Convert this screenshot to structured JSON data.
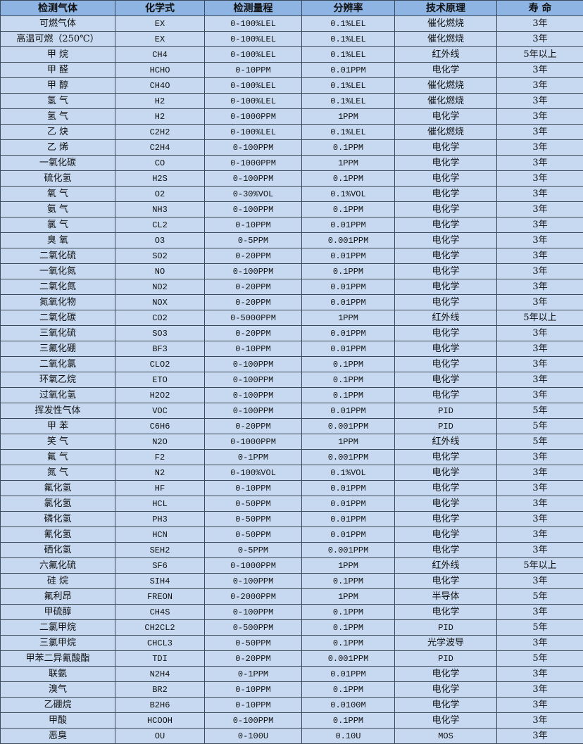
{
  "headers": [
    "检测气体",
    "化学式",
    "检测量程",
    "分辨率",
    "技术原理",
    "寿 命"
  ],
  "rows": [
    [
      "可燃气体",
      "EX",
      "0-100%LEL",
      "0.1%LEL",
      "催化燃烧",
      "3年"
    ],
    [
      "高温可燃（250℃）",
      "EX",
      "0-100%LEL",
      "0.1%LEL",
      "催化燃烧",
      "3年"
    ],
    [
      "甲 烷",
      "CH4",
      "0-100%LEL",
      "0.1%LEL",
      "红外线",
      "5年以上"
    ],
    [
      "甲 醛",
      "HCHO",
      "0-10PPM",
      "0.01PPM",
      "电化学",
      "3年"
    ],
    [
      "甲 醇",
      "CH4O",
      "0-100%LEL",
      "0.1%LEL",
      "催化燃烧",
      "3年"
    ],
    [
      "氢 气",
      "H2",
      "0-100%LEL",
      "0.1%LEL",
      "催化燃烧",
      "3年"
    ],
    [
      "氢 气",
      "H2",
      "0-1000PPM",
      "1PPM",
      "电化学",
      "3年"
    ],
    [
      "乙 炔",
      "C2H2",
      "0-100%LEL",
      "0.1%LEL",
      "催化燃烧",
      "3年"
    ],
    [
      "乙 烯",
      "C2H4",
      "0-100PPM",
      "0.1PPM",
      "电化学",
      "3年"
    ],
    [
      "一氧化碳",
      "CO",
      "0-1000PPM",
      "1PPM",
      "电化学",
      "3年"
    ],
    [
      "硫化氢",
      "H2S",
      "0-100PPM",
      "0.1PPM",
      "电化学",
      "3年"
    ],
    [
      "氧 气",
      "O2",
      "0-30%VOL",
      "0.1%VOL",
      "电化学",
      "3年"
    ],
    [
      "氨 气",
      "NH3",
      "0-100PPM",
      "0.1PPM",
      "电化学",
      "3年"
    ],
    [
      "氯 气",
      "CL2",
      "0-10PPM",
      "0.01PPM",
      "电化学",
      "3年"
    ],
    [
      "臭 氧",
      "O3",
      "0-5PPM",
      "0.001PPM",
      "电化学",
      "3年"
    ],
    [
      "二氧化硫",
      "SO2",
      "0-20PPM",
      "0.01PPM",
      "电化学",
      "3年"
    ],
    [
      "一氧化氮",
      "NO",
      "0-100PPM",
      "0.1PPM",
      "电化学",
      "3年"
    ],
    [
      "二氧化氮",
      "NO2",
      "0-20PPM",
      "0.01PPM",
      "电化学",
      "3年"
    ],
    [
      "氮氧化物",
      "NOX",
      "0-20PPM",
      "0.01PPM",
      "电化学",
      "3年"
    ],
    [
      "二氧化碳",
      "CO2",
      "0-5000PPM",
      "1PPM",
      "红外线",
      "5年以上"
    ],
    [
      "三氧化硫",
      "SO3",
      "0-20PPM",
      "0.01PPM",
      "电化学",
      "3年"
    ],
    [
      "三氟化硼",
      "BF3",
      "0-10PPM",
      "0.01PPM",
      "电化学",
      "3年"
    ],
    [
      "二氧化氯",
      "CLO2",
      "0-100PPM",
      "0.1PPM",
      "电化学",
      "3年"
    ],
    [
      "环氧乙烷",
      "ETO",
      "0-100PPM",
      "0.1PPM",
      "电化学",
      "3年"
    ],
    [
      "过氧化氢",
      "H2O2",
      "0-100PPM",
      "0.1PPM",
      "电化学",
      "3年"
    ],
    [
      "挥发性气体",
      "VOC",
      "0-100PPM",
      "0.01PPM",
      "PID",
      "5年"
    ],
    [
      "甲 苯",
      "C6H6",
      "0-20PPM",
      "0.001PPM",
      "PID",
      "5年"
    ],
    [
      "笑 气",
      "N2O",
      "0-1000PPM",
      "1PPM",
      "红外线",
      "5年"
    ],
    [
      "氟 气",
      "F2",
      "0-1PPM",
      "0.001PPM",
      "电化学",
      "3年"
    ],
    [
      "氮 气",
      "N2",
      "0-100%VOL",
      "0.1%VOL",
      "电化学",
      "3年"
    ],
    [
      "氟化氢",
      "HF",
      "0-10PPM",
      "0.01PPM",
      "电化学",
      "3年"
    ],
    [
      "氯化氢",
      "HCL",
      "0-50PPM",
      "0.01PPM",
      "电化学",
      "3年"
    ],
    [
      "磷化氢",
      "PH3",
      "0-50PPM",
      "0.01PPM",
      "电化学",
      "3年"
    ],
    [
      "氰化氢",
      "HCN",
      "0-50PPM",
      "0.01PPM",
      "电化学",
      "3年"
    ],
    [
      "硒化氢",
      "SEH2",
      "0-5PPM",
      "0.001PPM",
      "电化学",
      "3年"
    ],
    [
      "六氟化硫",
      "SF6",
      "0-1000PPM",
      "1PPM",
      "红外线",
      "5年以上"
    ],
    [
      "硅 烷",
      "SIH4",
      "0-100PPM",
      "0.1PPM",
      "电化学",
      "3年"
    ],
    [
      "氟利昂",
      "FREON",
      "0-2000PPM",
      "1PPM",
      "半导体",
      "5年"
    ],
    [
      "甲硫醇",
      "CH4S",
      "0-100PPM",
      "0.1PPM",
      "电化学",
      "3年"
    ],
    [
      "二氯甲烷",
      "CH2CL2",
      "0-500PPM",
      "0.1PPM",
      "PID",
      "5年"
    ],
    [
      "三氯甲烷",
      "CHCL3",
      "0-50PPM",
      "0.1PPM",
      "光学波导",
      "3年"
    ],
    [
      "甲苯二异氰酸酯",
      "TDI",
      "0-20PPM",
      "0.001PPM",
      "PID",
      "5年"
    ],
    [
      "联氨",
      "N2H4",
      "0-1PPM",
      "0.01PPM",
      "电化学",
      "3年"
    ],
    [
      "溴气",
      "BR2",
      "0-10PPM",
      "0.1PPM",
      "电化学",
      "3年"
    ],
    [
      "乙硼烷",
      "B2H6",
      "0-10PPM",
      "0.0100M",
      "电化学",
      "3年"
    ],
    [
      "甲酸",
      "HCOOH",
      "0-100PPM",
      "0.1PPM",
      "电化学",
      "3年"
    ],
    [
      "恶臭",
      "OU",
      "0-100U",
      "0.10U",
      "MOS",
      "3年"
    ]
  ]
}
